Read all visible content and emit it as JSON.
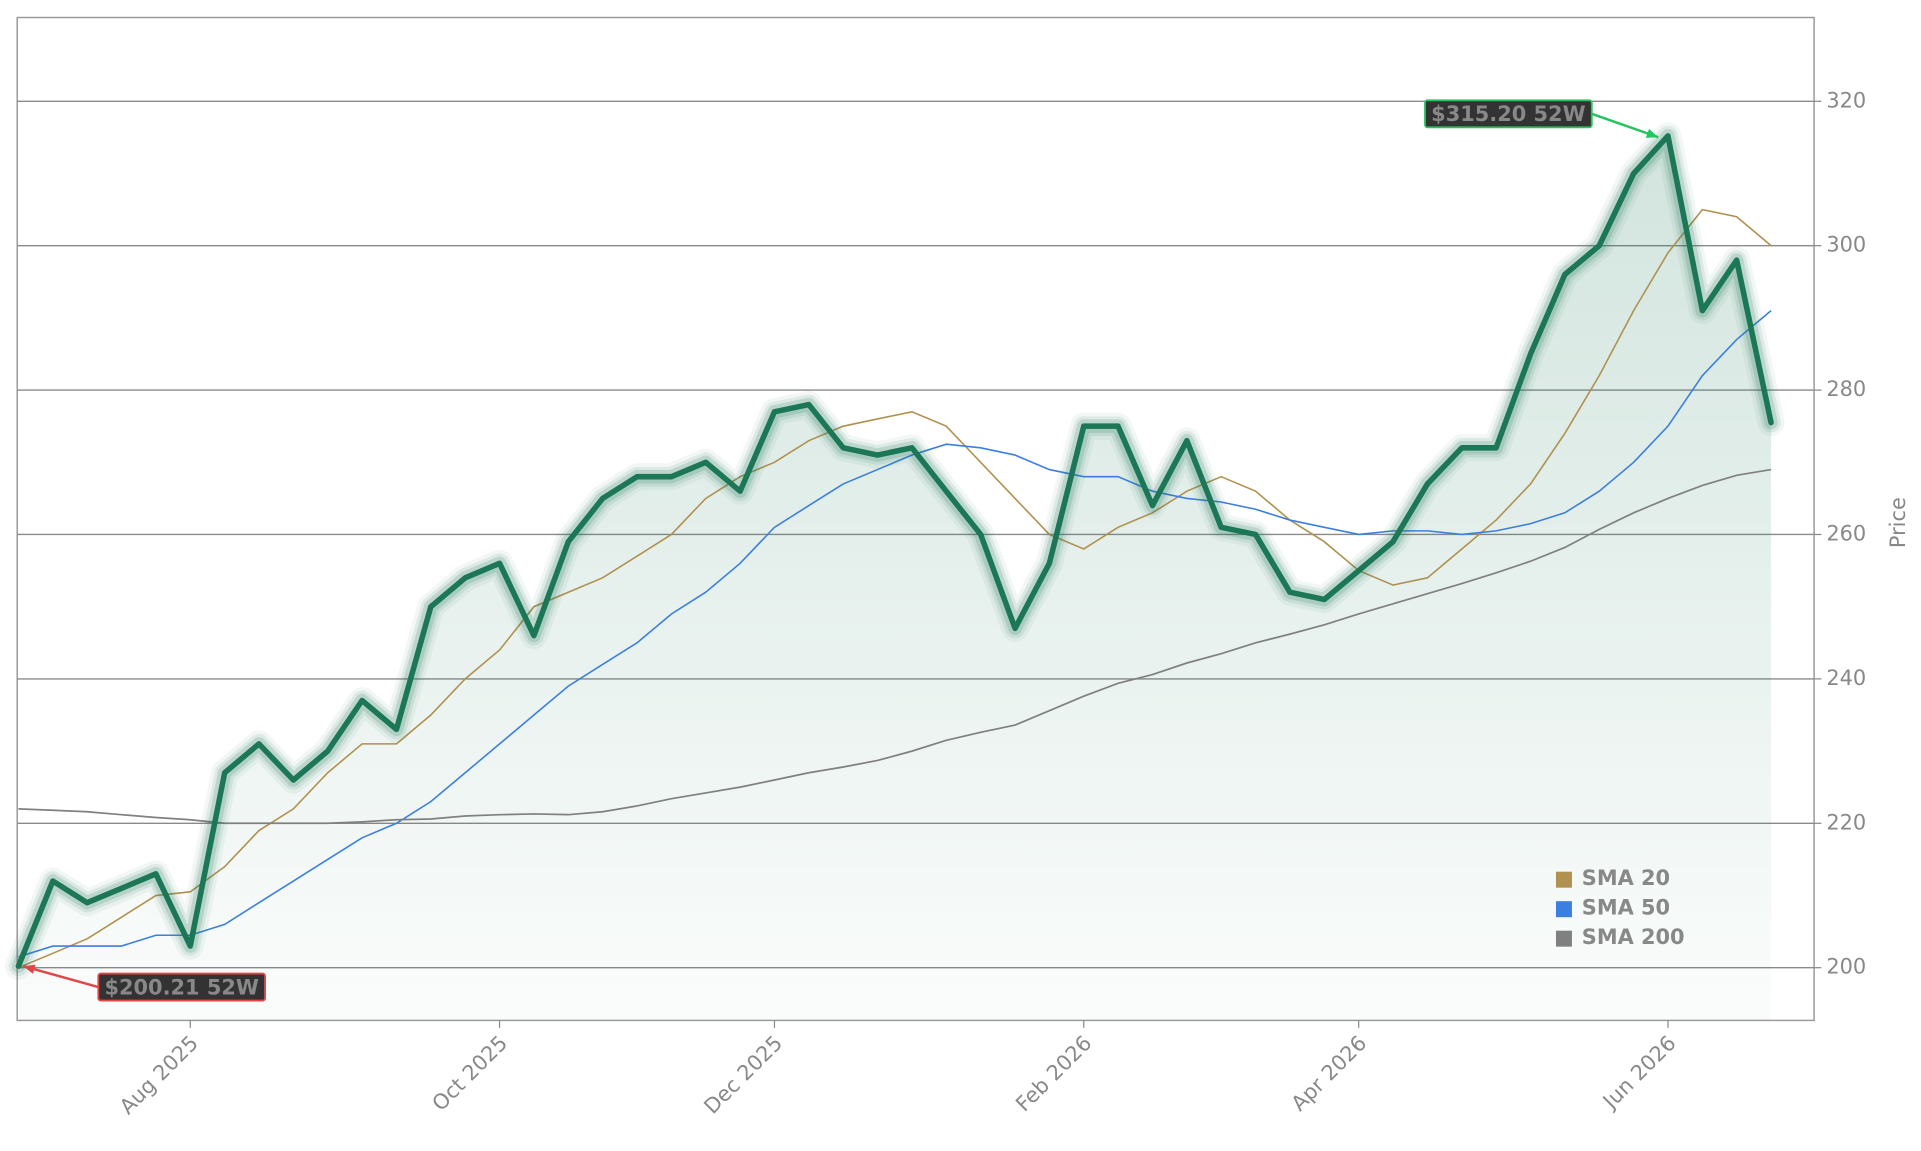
{
  "chart_data": {
    "type": "line",
    "y_label": "Price",
    "ylim": [
      192.7,
      331.6
    ],
    "yticks": [
      200,
      220,
      240,
      260,
      280,
      300,
      320
    ],
    "grid": true,
    "legend": "lower right",
    "categories": [
      null,
      null,
      null,
      null,
      null,
      "Aug 2025",
      null,
      null,
      null,
      null,
      null,
      null,
      null,
      null,
      "Oct 2025",
      null,
      null,
      null,
      null,
      null,
      null,
      null,
      "Dec 2025",
      null,
      null,
      null,
      null,
      null,
      null,
      null,
      null,
      "Feb 2026",
      null,
      null,
      null,
      null,
      null,
      null,
      null,
      "Apr 2026",
      null,
      null,
      null,
      null,
      null,
      null,
      null,
      null,
      "Jun 2026",
      null,
      null,
      null
    ],
    "series": [
      {
        "color": "#1b7755",
        "values": [
          200.21,
          212,
          209,
          211,
          213,
          203,
          227,
          231,
          226,
          230,
          237,
          233,
          250,
          254,
          256,
          246,
          259,
          265,
          268,
          268,
          270,
          266,
          277,
          278,
          272,
          271,
          272,
          266,
          260,
          247,
          256,
          275,
          275,
          264,
          273,
          261,
          260,
          252,
          251,
          255,
          259,
          267,
          272,
          272,
          285,
          296,
          300,
          310,
          315.2,
          291,
          298,
          275.5
        ]
      },
      {
        "name": "SMA 20",
        "color": "#b0914f",
        "values": [
          200,
          202,
          204,
          207,
          210,
          210.5,
          214,
          219,
          222,
          227,
          231,
          231,
          235,
          240,
          244,
          250,
          252,
          254,
          257,
          260,
          265,
          268,
          270,
          273,
          275,
          276,
          277,
          275,
          270,
          265,
          260,
          258,
          261,
          263,
          266,
          268,
          266,
          262,
          259,
          255,
          253,
          254,
          258,
          262,
          267,
          274,
          282,
          291,
          299,
          305,
          304,
          300
        ]
      },
      {
        "name": "SMA 50",
        "color": "#3b7fe0",
        "values": [
          201.5,
          203,
          203,
          203,
          204.5,
          204.5,
          206,
          209,
          212,
          215,
          218,
          220,
          223,
          227,
          231,
          235,
          239,
          242,
          245,
          249,
          252,
          256,
          261,
          264,
          267,
          269,
          271,
          272.5,
          272,
          271,
          269,
          268,
          268,
          266,
          265,
          264.5,
          263.5,
          262,
          261,
          260,
          260.5,
          260.5,
          260,
          260.5,
          261.5,
          263,
          266,
          270,
          275,
          282,
          287,
          291
        ]
      },
      {
        "name": "SMA 200",
        "color": "#808080",
        "values": [
          222,
          221.8,
          221.6,
          221.2,
          220.8,
          220.5,
          220,
          220,
          220,
          220,
          220.2,
          220.5,
          220.6,
          221,
          221.2,
          221.3,
          221.2,
          221.6,
          222.4,
          223.4,
          224.2,
          225,
          226,
          227,
          227.8,
          228.7,
          230,
          231.5,
          232.6,
          233.6,
          235.6,
          237.6,
          239.4,
          240.6,
          242.2,
          243.5,
          245,
          246.2,
          247.5,
          249,
          250.4,
          251.8,
          253.2,
          254.7,
          256.3,
          258.2,
          260.7,
          263,
          265,
          266.8,
          268.2,
          269
        ]
      }
    ],
    "annotations": [
      {
        "text": "$315.20 52W",
        "value": 315.2,
        "color": "#22c55e"
      },
      {
        "text": "$200.21 52W",
        "value": 200.21,
        "color": "#e04848"
      }
    ]
  }
}
